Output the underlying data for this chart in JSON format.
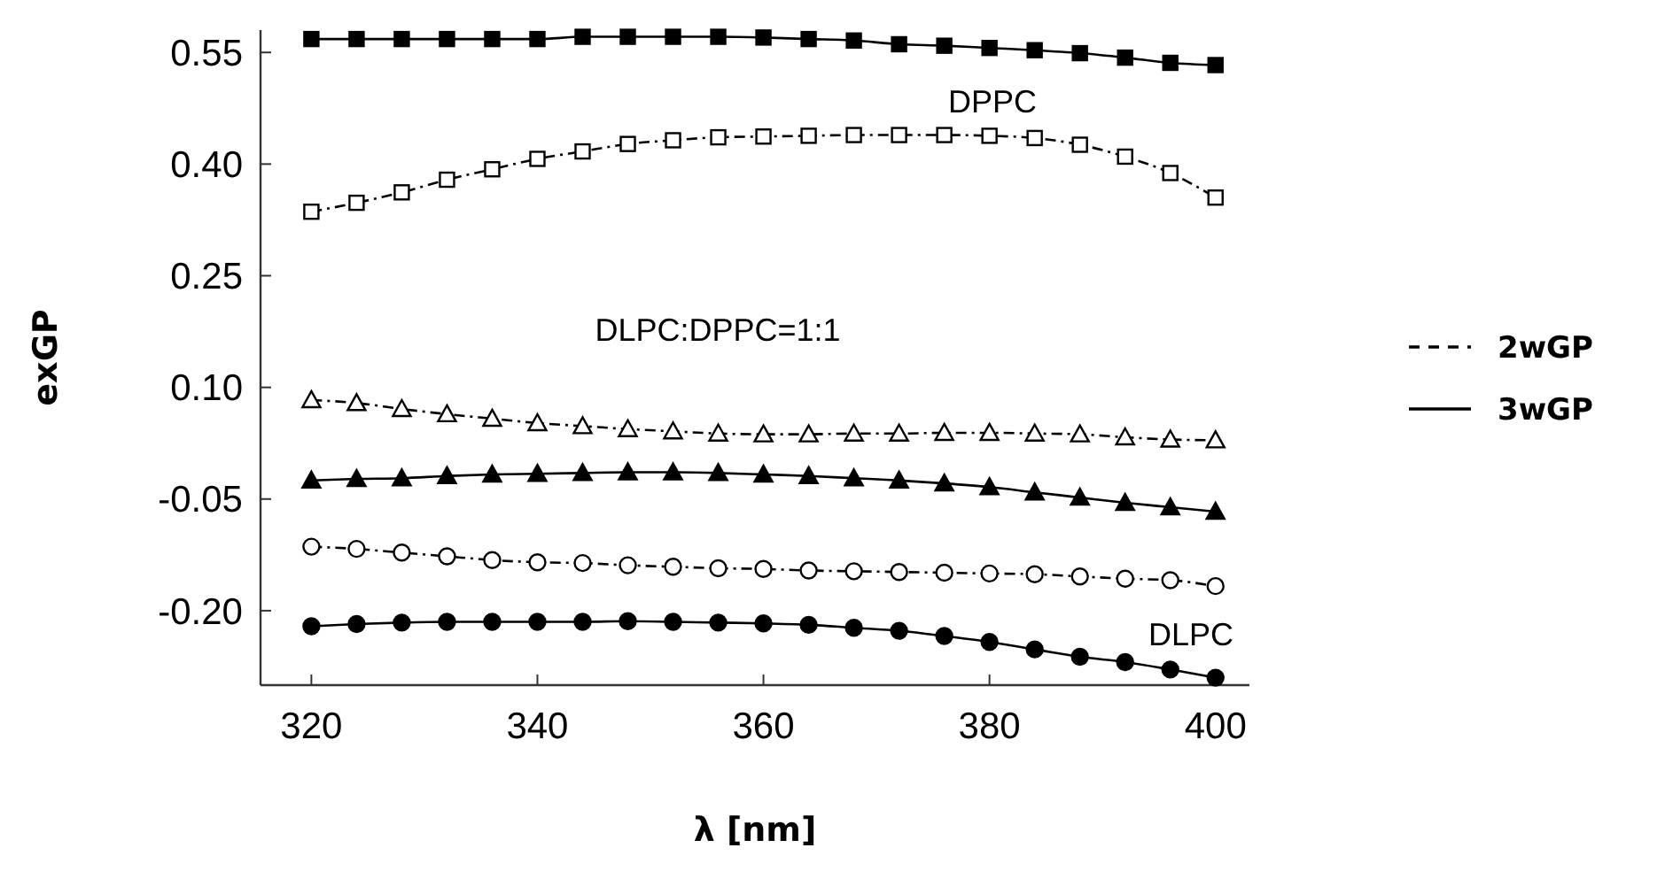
{
  "chart_data": {
    "type": "line",
    "xlabel": "λ [nm]",
    "ylabel": "exGP",
    "x": [
      320,
      324,
      328,
      332,
      336,
      340,
      344,
      348,
      352,
      356,
      360,
      364,
      368,
      372,
      376,
      380,
      384,
      388,
      392,
      396,
      400
    ],
    "xlim": [
      315.5,
      403
    ],
    "xticks": [
      320,
      340,
      360,
      380,
      400
    ],
    "ylim": [
      -0.3,
      0.58
    ],
    "yticks": [
      {
        "value": 0.55,
        "label": "0.55"
      },
      {
        "value": 0.4,
        "label": "0.40"
      },
      {
        "value": 0.25,
        "label": "0.25"
      },
      {
        "value": 0.1,
        "label": "0.10"
      },
      {
        "value": -0.05,
        "label": "-0.05"
      },
      {
        "value": -0.2,
        "label": "-0.20"
      }
    ],
    "grid": false,
    "legend": "right",
    "series": [
      {
        "name": "2wGP",
        "color": "#000000",
        "marker": "square",
        "line_style": "dashed",
        "values": [
          0.336,
          0.348,
          0.362,
          0.379,
          0.393,
          0.407,
          0.417,
          0.427,
          0.432,
          0.436,
          0.437,
          0.438,
          0.439,
          0.439,
          0.439,
          0.438,
          0.435,
          0.426,
          0.41,
          0.388,
          0.355
        ]
      },
      {
        "name": "3wGP",
        "color": "#000000",
        "marker": "square",
        "line_style": "solid",
        "values": [
          0.568,
          0.568,
          0.568,
          0.568,
          0.568,
          0.568,
          0.571,
          0.571,
          0.571,
          0.571,
          0.57,
          0.568,
          0.566,
          0.561,
          0.559,
          0.556,
          0.553,
          0.549,
          0.543,
          0.536,
          0.533
        ]
      },
      {
        "color": "#000000",
        "marker": "triangle",
        "line_style": "dashed",
        "values": [
          0.083,
          0.079,
          0.071,
          0.064,
          0.058,
          0.052,
          0.048,
          0.044,
          0.041,
          0.038,
          0.037,
          0.037,
          0.038,
          0.038,
          0.039,
          0.039,
          0.038,
          0.037,
          0.033,
          0.03,
          0.029
        ]
      },
      {
        "color": "#000000",
        "marker": "triangle",
        "line_style": "solid",
        "values": [
          -0.025,
          -0.023,
          -0.022,
          -0.019,
          -0.017,
          -0.016,
          -0.015,
          -0.014,
          -0.014,
          -0.015,
          -0.017,
          -0.019,
          -0.022,
          -0.025,
          -0.029,
          -0.034,
          -0.041,
          -0.048,
          -0.055,
          -0.061,
          -0.067
        ]
      },
      {
        "color": "#000000",
        "marker": "circle",
        "line_style": "dashed",
        "values": [
          -0.114,
          -0.117,
          -0.122,
          -0.127,
          -0.132,
          -0.135,
          -0.136,
          -0.139,
          -0.141,
          -0.143,
          -0.144,
          -0.146,
          -0.147,
          -0.148,
          -0.149,
          -0.15,
          -0.151,
          -0.154,
          -0.157,
          -0.159,
          -0.167
        ]
      },
      {
        "color": "#000000",
        "marker": "circle",
        "line_style": "solid",
        "values": [
          -0.221,
          -0.218,
          -0.216,
          -0.215,
          -0.215,
          -0.215,
          -0.215,
          -0.214,
          -0.215,
          -0.216,
          -0.217,
          -0.219,
          -0.223,
          -0.227,
          -0.234,
          -0.242,
          -0.252,
          -0.262,
          -0.269,
          -0.279,
          -0.29
        ]
      }
    ],
    "annotations": [
      "DPPC",
      "DLPC:DPPC=1:1",
      "DLPC"
    ]
  }
}
